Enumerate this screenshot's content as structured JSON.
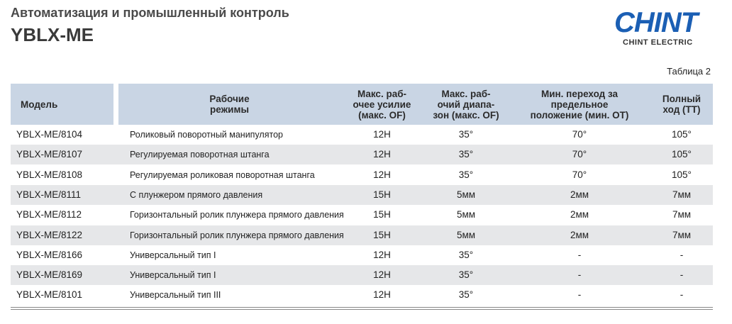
{
  "header": {
    "subtitle": "Автоматизация и промышленный контроль",
    "title": "YBLX-ME"
  },
  "logo": {
    "name": "CHINT",
    "tagline": "CHINT ELECTRIC"
  },
  "table": {
    "caption": "Таблица 2",
    "columns": [
      [
        "Модель"
      ],
      [
        "Рабочие",
        "режимы"
      ],
      [
        "Макс. раб-",
        "очее усилие",
        "(макс. OF)"
      ],
      [
        "Макс. раб-",
        "очий диапа-",
        "зон (макс. OF)"
      ],
      [
        "Мин. переход за",
        "предельное",
        "положение (мин. OT)"
      ],
      [
        "Полный",
        "ход (TT)"
      ]
    ],
    "rows": [
      [
        "YBLX-ME/8104",
        "Роликовый поворотный манипулятор",
        "12H",
        "35°",
        "70°",
        "105°"
      ],
      [
        "YBLX-ME/8107",
        "Регулируемая поворотная штанга",
        "12H",
        "35°",
        "70°",
        "105°"
      ],
      [
        "YBLX-ME/8108",
        "Регулируемая роликовая поворотная штанга",
        "12H",
        "35°",
        "70°",
        "105°"
      ],
      [
        "YBLX-ME/8111",
        "С плунжером прямого давления",
        "15H",
        "5мм",
        "2мм",
        "7мм"
      ],
      [
        "YBLX-ME/8112",
        "Горизонтальный ролик плунжера прямого  давления",
        "15H",
        "5мм",
        "2мм",
        "7мм"
      ],
      [
        "YBLX-ME/8122",
        "Горизонтальный ролик плунжера прямого  давления",
        "15H",
        "5мм",
        "2мм",
        "7мм"
      ],
      [
        "YBLX-ME/8166",
        "Универсальный тип I",
        "12H",
        "35°",
        "-",
        "-"
      ],
      [
        "YBLX-ME/8169",
        "Универсальный тип I",
        "12H",
        "35°",
        "-",
        "-"
      ],
      [
        "YBLX-ME/8101",
        "Универсальный тип III",
        "12H",
        "35°",
        "-",
        "-"
      ]
    ]
  }
}
